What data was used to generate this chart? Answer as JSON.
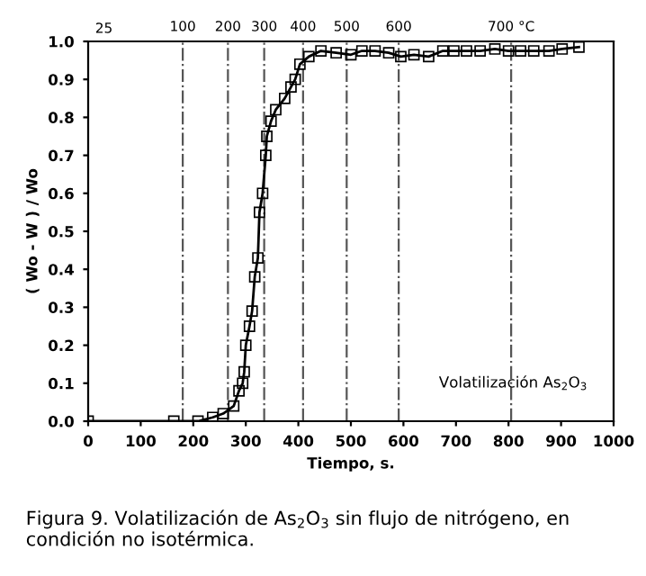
{
  "chart_data": {
    "type": "line",
    "xlabel": "Tiempo, s.",
    "ylabel": "( Wo - W ) / Wo",
    "xlim": [
      0,
      1000
    ],
    "xticks": [
      0,
      100,
      200,
      300,
      400,
      500,
      600,
      700,
      800,
      900,
      1000
    ],
    "ylim": [
      0,
      1
    ],
    "yticks": [
      {
        "value": 0,
        "label": "0.0"
      },
      {
        "value": 0.1,
        "label": "0.1"
      },
      {
        "value": 0.2,
        "label": "0.2"
      },
      {
        "value": 0.3,
        "label": "0.3"
      },
      {
        "value": 0.4,
        "label": "0.4"
      },
      {
        "value": 0.5,
        "label": "0.5"
      },
      {
        "value": 0.6,
        "label": "0.6"
      },
      {
        "value": 0.7,
        "label": "0.7"
      },
      {
        "value": 0.8,
        "label": "0.8"
      },
      {
        "value": 0.9,
        "label": "0.9"
      },
      {
        "value": 1,
        "label": "1.0"
      }
    ],
    "x": [
      0,
      163,
      209,
      237,
      257,
      277,
      287,
      294,
      297,
      300,
      307,
      312,
      317,
      323,
      326,
      332,
      338,
      340,
      348,
      357,
      374,
      386,
      394,
      403,
      420,
      443,
      472,
      500,
      521,
      546,
      572,
      595,
      620,
      648,
      675,
      696,
      720,
      746,
      774,
      800,
      823,
      848,
      877,
      902,
      934
    ],
    "series": [
      {
        "color": "#000000",
        "values": [
          0,
          0,
          0,
          0.01,
          0.02,
          0.04,
          0.08,
          0.1,
          0.13,
          0.2,
          0.25,
          0.29,
          0.38,
          0.43,
          0.55,
          0.6,
          0.7,
          0.75,
          0.79,
          0.82,
          0.85,
          0.88,
          0.9,
          0.94,
          0.96,
          0.975,
          0.97,
          0.965,
          0.975,
          0.975,
          0.97,
          0.96,
          0.965,
          0.96,
          0.975,
          0.975,
          0.975,
          0.975,
          0.98,
          0.975,
          0.975,
          0.975,
          0.975,
          0.98,
          0.985
        ]
      }
    ],
    "marker": "square",
    "line_style": "solid",
    "grid": false,
    "legend": false,
    "ref_lines": [
      {
        "axis": "x",
        "value": 180,
        "color": "#555555",
        "line_style": "dashdot"
      },
      {
        "axis": "x",
        "value": 266,
        "color": "#555555",
        "line_style": "dashdot"
      },
      {
        "axis": "x",
        "value": 335,
        "color": "#555555",
        "line_style": "dashdot"
      },
      {
        "axis": "x",
        "value": 409,
        "color": "#555555",
        "line_style": "dashdot"
      },
      {
        "axis": "x",
        "value": 492,
        "color": "#555555",
        "line_style": "dashdot"
      },
      {
        "axis": "x",
        "value": 591,
        "color": "#555555",
        "line_style": "dashdot"
      },
      {
        "axis": "x",
        "value": 805,
        "color": "#555555",
        "line_style": "dashdot"
      }
    ],
    "annotations": [
      "25",
      "Volatilización As$_{2}$O$_{3}$",
      {
        "text": "100",
        "x": 180,
        "y": 1
      },
      {
        "text": "200",
        "x": 266,
        "y": 1
      },
      {
        "text": "300",
        "x": 335,
        "y": 1
      },
      {
        "text": "400",
        "x": 409,
        "y": 1
      },
      {
        "text": "500",
        "x": 492,
        "y": 1
      },
      {
        "text": "600",
        "x": 591,
        "y": 1
      },
      {
        "text": "700 °C",
        "x": 805,
        "y": 1
      },
      "Figura 9. Volatilización de As$_{2}$O$_{3}$ sin flujo de nitrógeno, en condición no isotérmica."
    ]
  }
}
